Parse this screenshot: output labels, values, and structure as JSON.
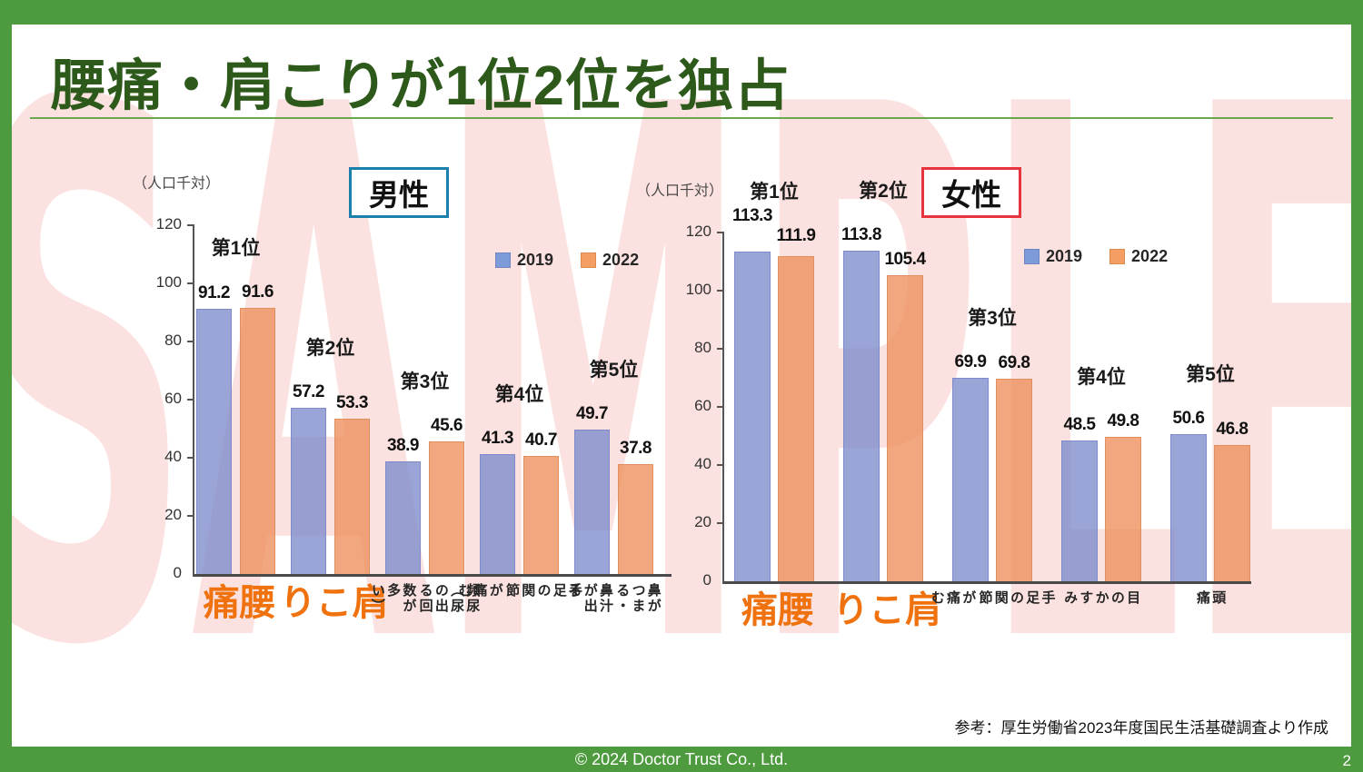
{
  "slide": {
    "title": "腰痛・肩こりが1位2位を独占",
    "watermark": "SAMPLE",
    "source_note": "参考：厚生労働省2023年度国民生活基礎調査より作成",
    "footer": "© 2024 Doctor Trust Co., Ltd.",
    "page_number": "2"
  },
  "colors": {
    "frame_green": "#4e9b3f",
    "title_green": "#2d5a1b",
    "underline_green": "#6aa84f",
    "bar_2019": "rgba(129,141,204,0.8)",
    "bar_2019_border": "#7d8cc8",
    "bar_2022": "rgba(239,145,94,0.8)",
    "bar_2022_border": "#e08f5e",
    "legend_2019": "#7d9bd8",
    "legend_2022": "#f49e63",
    "highlight_orange": "#f0720f",
    "male_box_border": "#1b7fae",
    "female_box_border": "#e8323c",
    "watermark_pink": "#fbe2e0"
  },
  "chart_data": [
    {
      "type": "bar",
      "group": "男性",
      "unit_label": "（人口千対）",
      "ylim": [
        0,
        120
      ],
      "ytick_step": 20,
      "grid": false,
      "legend_position": "top-right-inside",
      "categories": [
        {
          "label": "腰痛",
          "lines": [
            "腰痛"
          ],
          "highlight": true,
          "rank": "第1位"
        },
        {
          "label": "肩こり",
          "lines": [
            "肩こり"
          ],
          "highlight": true,
          "rank": "第2位"
        },
        {
          "label": "頻尿（尿の出る回数が多い）",
          "lines": [
            "頻尿（尿の出る回",
            "数が多い）"
          ],
          "highlight": false,
          "rank": "第3位"
        },
        {
          "label": "手足の関節が痛む",
          "lines": [
            "手足の関節",
            "が痛む"
          ],
          "highlight": false,
          "rank": "第4位"
        },
        {
          "label": "鼻がつまる・鼻汁が出る",
          "lines": [
            "鼻がつまる・",
            "鼻汁が出る"
          ],
          "highlight": false,
          "rank": "第5位"
        }
      ],
      "series": [
        {
          "name": "2019",
          "values": [
            91.2,
            57.2,
            38.9,
            41.3,
            49.7
          ]
        },
        {
          "name": "2022",
          "values": [
            91.6,
            53.3,
            45.6,
            40.7,
            37.8
          ]
        }
      ]
    },
    {
      "type": "bar",
      "group": "女性",
      "unit_label": "（人口千対）",
      "ylim": [
        0,
        120
      ],
      "ytick_step": 20,
      "grid": false,
      "legend_position": "top-right-inside",
      "categories": [
        {
          "label": "腰痛",
          "lines": [
            "腰痛"
          ],
          "highlight": true,
          "rank": "第1位"
        },
        {
          "label": "肩こり",
          "lines": [
            "肩こり"
          ],
          "highlight": true,
          "rank": "第2位"
        },
        {
          "label": "手足の関節が痛む",
          "lines": [
            "手足の関節",
            "が痛む"
          ],
          "highlight": false,
          "rank": "第3位"
        },
        {
          "label": "目のかすみ",
          "lines": [
            "目のかすみ"
          ],
          "highlight": false,
          "rank": "第4位"
        },
        {
          "label": "頭痛",
          "lines": [
            "頭痛"
          ],
          "highlight": false,
          "rank": "第5位"
        }
      ],
      "series": [
        {
          "name": "2019",
          "values": [
            113.3,
            113.8,
            69.9,
            48.5,
            50.6
          ]
        },
        {
          "name": "2022",
          "values": [
            111.9,
            105.4,
            69.8,
            49.8,
            46.8
          ]
        }
      ]
    }
  ]
}
